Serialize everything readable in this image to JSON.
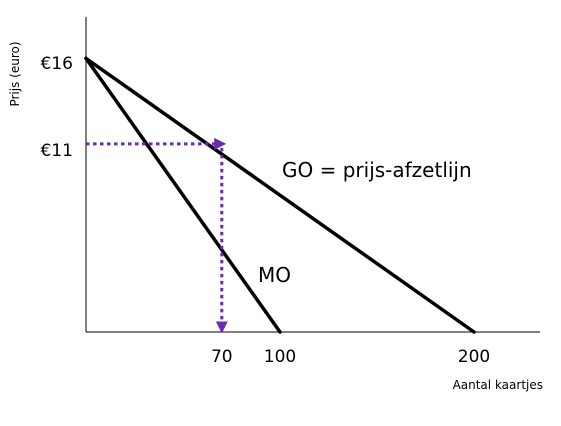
{
  "chart_data": {
    "type": "line",
    "xlabel": "Aantal kaartjes",
    "ylabel": "Prijs (euro)",
    "xlim": [
      0,
      230
    ],
    "ylim": [
      0,
      16
    ],
    "x_ticks": [
      {
        "value": 70,
        "label": "70"
      },
      {
        "value": 100,
        "label": "100"
      },
      {
        "value": 200,
        "label": "200"
      }
    ],
    "y_ticks": [
      {
        "value": 16,
        "label": "€16"
      },
      {
        "value": 11,
        "label": "€11"
      }
    ],
    "series": [
      {
        "name": "GO = prijs-afzetlijn",
        "x": [
          0,
          200
        ],
        "y": [
          16,
          0
        ],
        "color": "#000000"
      },
      {
        "name": "MO",
        "x": [
          0,
          100
        ],
        "y": [
          16,
          0
        ],
        "color": "#000000"
      }
    ],
    "annotations": [
      {
        "type": "dotted-arrow",
        "from": {
          "x": 0,
          "y": 11
        },
        "to": {
          "x": 70,
          "y": 11
        },
        "color": "#6a2bb3"
      },
      {
        "type": "dotted-arrow",
        "from": {
          "x": 70,
          "y": 11
        },
        "to": {
          "x": 70,
          "y": 0
        },
        "color": "#6a2bb3"
      }
    ],
    "grid": false,
    "legend": "none"
  }
}
